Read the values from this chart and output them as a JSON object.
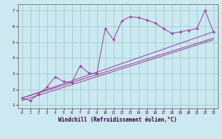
{
  "title": "",
  "xlabel": "Windchill (Refroidissement éolien,°C)",
  "bg_color": "#cce8f0",
  "line_color": "#993399",
  "marker": "+",
  "grid_color": "#99cccc",
  "x_ticks": [
    0,
    1,
    2,
    3,
    4,
    5,
    6,
    7,
    8,
    9,
    10,
    11,
    12,
    13,
    14,
    15,
    16,
    17,
    18,
    19,
    20,
    21,
    22,
    23
  ],
  "y_ticks": [
    1,
    2,
    3,
    4,
    5,
    6,
    7
  ],
  "ylim": [
    0.8,
    7.4
  ],
  "xlim": [
    -0.5,
    23.5
  ],
  "series1_x": [
    0,
    1,
    2,
    3,
    4,
    5,
    6,
    7,
    8,
    9,
    10,
    11,
    12,
    13,
    14,
    15,
    16,
    17,
    18,
    19,
    20,
    21,
    22,
    23
  ],
  "series1_y": [
    1.45,
    1.3,
    1.7,
    2.15,
    2.8,
    2.5,
    2.45,
    3.5,
    3.05,
    3.0,
    5.85,
    5.15,
    6.35,
    6.6,
    6.55,
    6.4,
    6.2,
    5.85,
    5.55,
    5.65,
    5.75,
    5.85,
    7.0,
    5.65
  ],
  "series2_x": [
    0,
    23
  ],
  "series2_y": [
    1.45,
    5.65
  ],
  "series3_x": [
    0,
    23
  ],
  "series3_y": [
    1.3,
    5.15
  ],
  "series4_x": [
    0,
    23
  ],
  "series4_y": [
    1.45,
    5.25
  ]
}
